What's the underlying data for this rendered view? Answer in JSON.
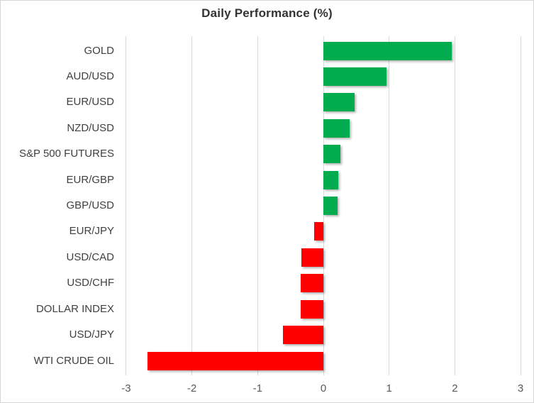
{
  "header": {
    "title": "Daily Performance (%)"
  },
  "colors": {
    "positive": "#00AC4E",
    "negative": "#FF0000",
    "gridline": "#D9D9D9",
    "frame_border": "#D6D6D6",
    "title_text": "#333333",
    "category_text": "#404040",
    "tick_text": "#595959",
    "background": "#FFFFFF"
  },
  "chart_data": {
    "type": "bar",
    "orientation": "horizontal",
    "title": "Daily Performance (%)",
    "categories": [
      "GOLD",
      "AUD/USD",
      "EUR/USD",
      "NZD/USD",
      "S&P 500 FUTURES",
      "EUR/GBP",
      "GBP/USD",
      "EUR/JPY",
      "USD/CAD",
      "USD/CHF",
      "DOLLAR INDEX",
      "USD/JPY",
      "WTI CRUDE OIL"
    ],
    "values": [
      1.95,
      0.96,
      0.47,
      0.4,
      0.26,
      0.23,
      0.22,
      -0.14,
      -0.33,
      -0.35,
      -0.35,
      -0.61,
      -2.68
    ],
    "xlabel": "",
    "ylabel": "",
    "xlim": [
      -3,
      3
    ],
    "xticks": [
      -3,
      -2,
      -1,
      0,
      1,
      2,
      3
    ],
    "grid": "vertical-only",
    "legend": "none"
  }
}
